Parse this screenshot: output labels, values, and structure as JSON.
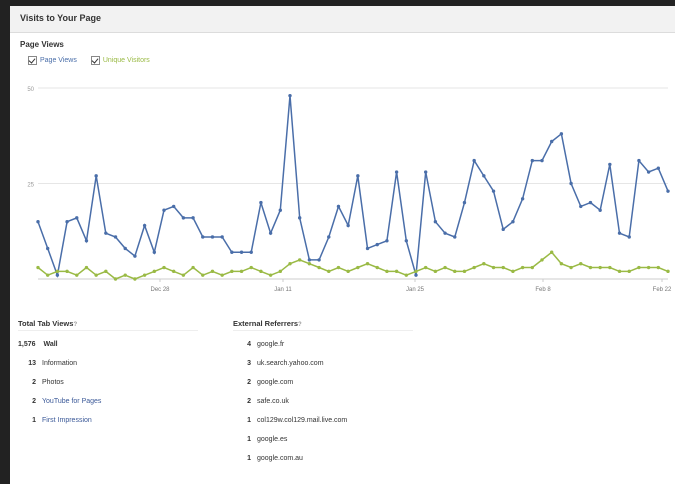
{
  "header": {
    "title": "Visits to Your Page"
  },
  "chart_data": {
    "type": "line",
    "title": "Page Views",
    "x_ticks": [
      "Dec 28",
      "Jan 11",
      "Jan 25",
      "Feb 8",
      "Feb 22"
    ],
    "y_ticks": [
      "50",
      "25"
    ],
    "ylim": [
      0,
      50
    ],
    "grid": true,
    "legend_placement": "top-left",
    "series": [
      {
        "name": "Page Views",
        "color": "#4a6ea9",
        "values": [
          15,
          8,
          1,
          15,
          16,
          10,
          27,
          12,
          11,
          8,
          6,
          14,
          7,
          18,
          19,
          16,
          16,
          11,
          11,
          11,
          7,
          7,
          7,
          20,
          12,
          18,
          48,
          16,
          5,
          5,
          11,
          19,
          14,
          27,
          8,
          9,
          10,
          28,
          10,
          1,
          28,
          15,
          12,
          11,
          20,
          31,
          27,
          23,
          13,
          15,
          21,
          31,
          31,
          36,
          38,
          25,
          19,
          20,
          18,
          30,
          12,
          11,
          31,
          28,
          29,
          23
        ]
      },
      {
        "name": "Unique Visitors",
        "color": "#9aba45",
        "values": [
          3,
          1,
          2,
          2,
          1,
          3,
          1,
          2,
          0,
          1,
          0,
          1,
          2,
          3,
          2,
          1,
          3,
          1,
          2,
          1,
          2,
          2,
          3,
          2,
          1,
          2,
          4,
          5,
          4,
          3,
          2,
          3,
          2,
          3,
          4,
          3,
          2,
          2,
          1,
          2,
          3,
          2,
          3,
          2,
          2,
          3,
          4,
          3,
          3,
          2,
          3,
          3,
          5,
          7,
          4,
          3,
          4,
          3,
          3,
          3,
          2,
          2,
          3,
          3,
          3,
          2
        ]
      }
    ]
  },
  "legend": {
    "page_views": "Page Views",
    "unique_visitors": "Unique Visitors"
  },
  "tabs_section": {
    "title": "Total Tab Views",
    "superscript": "?",
    "total_num": "1,576",
    "total_label": "Wall",
    "items": [
      {
        "num": "13",
        "label": "Information",
        "link": false
      },
      {
        "num": "2",
        "label": "Photos",
        "link": false
      },
      {
        "num": "2",
        "label": "YouTube for Pages",
        "link": true
      },
      {
        "num": "1",
        "label": "First Impression",
        "link": true
      }
    ]
  },
  "referrers_section": {
    "title": "External Referrers",
    "superscript": "?",
    "items": [
      {
        "num": "4",
        "label": "google.fr"
      },
      {
        "num": "3",
        "label": "uk.search.yahoo.com"
      },
      {
        "num": "2",
        "label": "google.com"
      },
      {
        "num": "2",
        "label": "safe.co.uk"
      },
      {
        "num": "1",
        "label": "col129w.col129.mail.live.com"
      },
      {
        "num": "1",
        "label": "google.es"
      },
      {
        "num": "1",
        "label": "google.com.au"
      }
    ]
  }
}
